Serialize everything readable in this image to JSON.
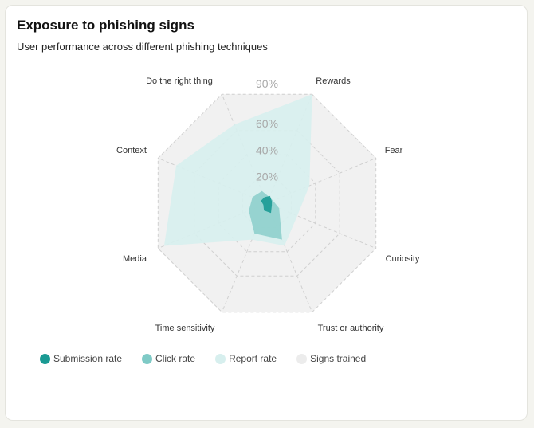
{
  "card": {
    "title": "Exposure to phishing signs",
    "subtitle": "User performance across different phishing techniques"
  },
  "colors": {
    "submission": "#1a9a93",
    "click": "#7fcac6",
    "report": "#d7efee",
    "signs": "#ececec",
    "grid": "#d0d0d0",
    "tick": "#a8a8a8"
  },
  "chart_data": {
    "type": "radar",
    "title": "Exposure to phishing signs",
    "subtitle": "User performance across different phishing techniques",
    "categories": [
      "Rewards",
      "Fear",
      "Curiosity",
      "Trust or authority",
      "Time sensitivity",
      "Media",
      "Context",
      "Do the right thing"
    ],
    "tick_labels": [
      "20%",
      "40%",
      "60%",
      "90%"
    ],
    "rmax": 90,
    "series": [
      {
        "name": "Signs trained",
        "values": [
          90,
          90,
          90,
          90,
          90,
          90,
          90,
          90
        ]
      },
      {
        "name": "Report rate",
        "values": [
          90,
          35,
          25,
          35,
          30,
          85,
          75,
          65
        ]
      },
      {
        "name": "Click rate",
        "values": [
          5,
          5,
          10,
          30,
          25,
          15,
          12,
          10
        ]
      },
      {
        "name": "Submission rate",
        "values": [
          6,
          4,
          4,
          8,
          6,
          3,
          5,
          5
        ]
      }
    ],
    "legend": [
      "Submission rate",
      "Click rate",
      "Report rate",
      "Signs trained"
    ],
    "legend_position": "bottom-left"
  }
}
